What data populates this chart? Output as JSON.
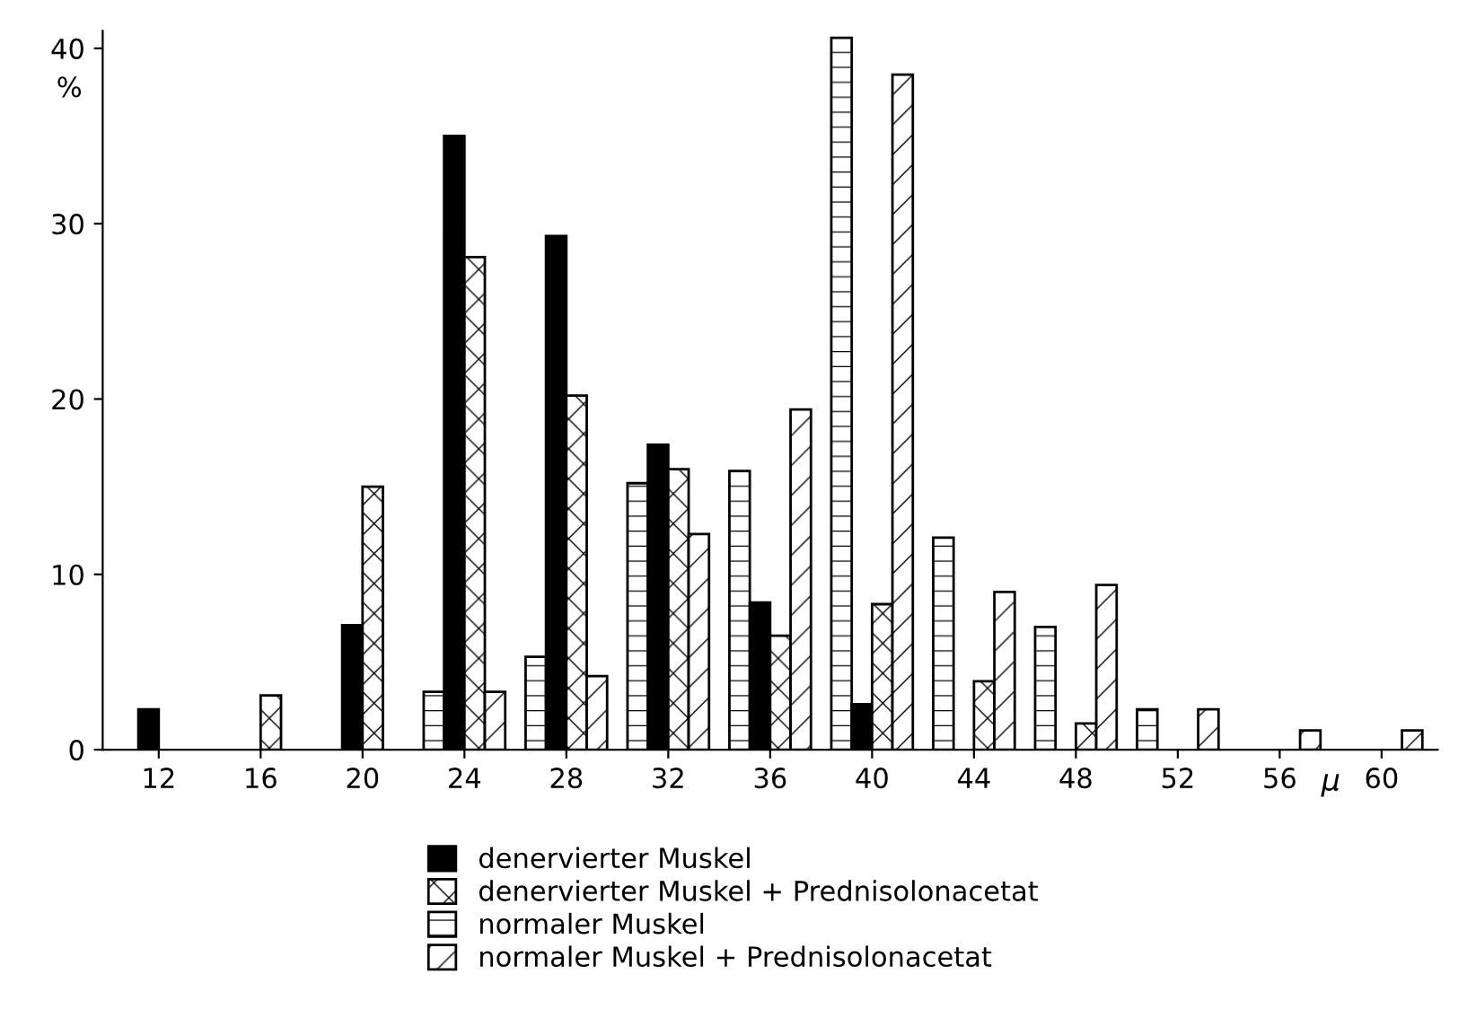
{
  "chart_data": {
    "type": "bar",
    "xlabel": "μ",
    "ylabel": "%",
    "categories": [
      "12",
      "16",
      "20",
      "24",
      "28",
      "32",
      "36",
      "40",
      "44",
      "48",
      "52",
      "56",
      "60"
    ],
    "series": [
      {
        "name": "normaler Muskel",
        "color": "#000000",
        "values": [
          null,
          null,
          null,
          3.3,
          5.3,
          15.2,
          15.9,
          40.6,
          12.1,
          7.0,
          2.3,
          null,
          null
        ]
      },
      {
        "name": "denervierter Muskel",
        "color": "#000000",
        "values": [
          2.3,
          null,
          7.1,
          35.0,
          29.3,
          17.4,
          8.4,
          2.6,
          null,
          null,
          null,
          null,
          null
        ]
      },
      {
        "name": "denervierter Muskel + Prednisolonacetat",
        "color": "#000000",
        "values": [
          null,
          3.1,
          15.0,
          28.1,
          20.2,
          16.0,
          6.5,
          8.3,
          3.9,
          1.5,
          null,
          null,
          null
        ]
      },
      {
        "name": "normaler Muskel + Prednisolonacetat",
        "color": "#000000",
        "values": [
          null,
          null,
          null,
          3.3,
          4.2,
          12.3,
          19.4,
          38.5,
          9.0,
          9.4,
          2.3,
          1.1,
          1.1
        ]
      }
    ],
    "ylim": [
      0,
      41
    ],
    "yticks": [
      0,
      10,
      20,
      30,
      40
    ],
    "grid": false,
    "legend": "bottom"
  }
}
